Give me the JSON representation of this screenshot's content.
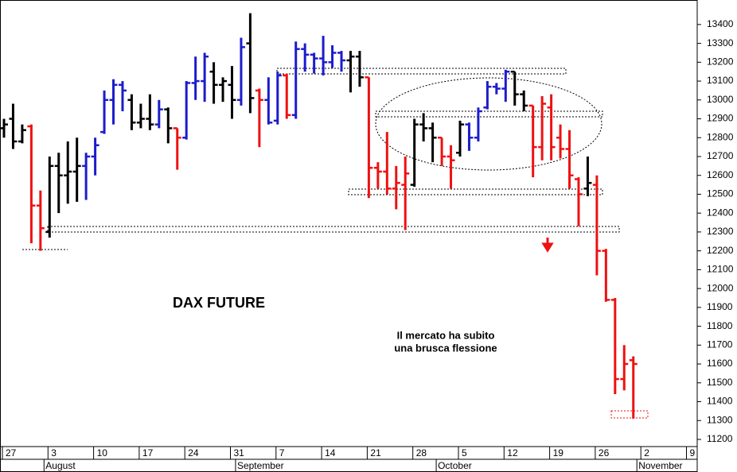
{
  "chart_data": {
    "type": "ohlc",
    "title": "DAX FUTURE",
    "annotation": [
      "Il mercato ha subito",
      "una brusca flessione"
    ],
    "categories": [
      "27",
      null,
      null,
      null,
      null,
      "3",
      null,
      null,
      null,
      null,
      "10",
      null,
      null,
      null,
      null,
      "17",
      null,
      null,
      null,
      null,
      "24",
      null,
      null,
      null,
      null,
      "31",
      null,
      null,
      null,
      null,
      "7",
      null,
      null,
      null,
      null,
      "14",
      null,
      null,
      null,
      null,
      "21",
      null,
      null,
      null,
      null,
      "28",
      null,
      null,
      null,
      null,
      "5",
      null,
      null,
      null,
      null,
      "12",
      null,
      null,
      null,
      null,
      "19",
      null,
      null,
      null,
      null,
      "26",
      null,
      null,
      null,
      null,
      "2",
      null,
      null,
      null,
      null,
      "9",
      null
    ],
    "open": [
      12850,
      12900,
      12780,
      12860,
      12440,
      12300,
      12650,
      12600,
      12620,
      12650,
      12700,
      12830,
      13000,
      13080,
      13000,
      12880,
      12900,
      12870,
      12950,
      12850,
      12800,
      13090,
      13100,
      13150,
      13080,
      13080,
      13000,
      13300,
      13050,
      13000,
      12890,
      13130,
      12920,
      13270,
      13240,
      13220,
      13200,
      13250,
      13210,
      13230,
      13120,
      12640,
      12620,
      12530,
      12550,
      12550,
      12870,
      12850,
      12800,
      12700,
      12720,
      12870,
      12800,
      12960,
      13070,
      13060,
      13150,
      13030,
      12970,
      12750,
      12960,
      12800,
      12740,
      12580,
      12530,
      12550,
      12200,
      11940,
      11520,
      11620,
      null,
      null,
      null,
      null,
      null,
      null,
      null
    ],
    "high": [
      12900,
      12980,
      12870,
      12870,
      12520,
      12700,
      12720,
      12780,
      12800,
      12720,
      12800,
      13050,
      13110,
      13100,
      13030,
      12980,
      13030,
      13000,
      12960,
      12850,
      13100,
      13230,
      13250,
      13200,
      13120,
      13180,
      13330,
      13460,
      13060,
      13120,
      13150,
      13140,
      13310,
      13300,
      13250,
      13340,
      13290,
      13260,
      13260,
      13260,
      13120,
      12670,
      12830,
      12650,
      12700,
      12900,
      12930,
      12880,
      12800,
      12760,
      12890,
      12880,
      12960,
      13100,
      13090,
      13160,
      13150,
      13050,
      12970,
      13020,
      13030,
      12870,
      12840,
      12590,
      12700,
      12600,
      12210,
      11950,
      11700,
      11640,
      null,
      null,
      null,
      null,
      null,
      null,
      null
    ],
    "low": [
      12800,
      12740,
      12770,
      12240,
      12200,
      12270,
      12400,
      12450,
      12460,
      12470,
      12600,
      12820,
      12870,
      12940,
      12840,
      12850,
      12840,
      12850,
      12770,
      12630,
      12790,
      13000,
      12990,
      12980,
      12990,
      12900,
      12970,
      12930,
      12750,
      12870,
      12870,
      12900,
      12900,
      13150,
      13140,
      13130,
      13170,
      13150,
      13040,
      13070,
      12480,
      12530,
      12500,
      12420,
      12310,
      12540,
      12780,
      12670,
      12650,
      12530,
      12700,
      12730,
      12780,
      12950,
      13030,
      12990,
      12970,
      12940,
      12590,
      12680,
      12680,
      12690,
      12530,
      12330,
      12490,
      12070,
      11930,
      11440,
      11460,
      11310,
      null,
      null,
      null,
      null,
      null,
      null,
      null
    ],
    "close": [
      12870,
      12780,
      12840,
      12440,
      12320,
      12650,
      12600,
      12620,
      12650,
      12700,
      12760,
      13000,
      13080,
      13050,
      12880,
      12900,
      12870,
      12950,
      12850,
      12800,
      13090,
      13100,
      13230,
      13080,
      13100,
      13000,
      13280,
      13010,
      13000,
      12880,
      13130,
      12920,
      13270,
      13240,
      13220,
      13200,
      13250,
      13210,
      13230,
      13120,
      12640,
      12620,
      12530,
      12560,
      12610,
      12870,
      12850,
      12800,
      12700,
      12680,
      12870,
      12800,
      12940,
      13070,
      13060,
      13150,
      13030,
      12970,
      12750,
      12980,
      12750,
      12740,
      12600,
      12500,
      12560,
      12200,
      11940,
      11520,
      11600,
      11600,
      null,
      null,
      null,
      null,
      null,
      null,
      null
    ],
    "colors": [
      "#000000",
      "#000000",
      "#000000",
      "#ee1111",
      "#ee1111",
      "#000000",
      "#000000",
      "#000000",
      "#000000",
      "#1c1ccc",
      "#1c1ccc",
      "#1c1ccc",
      "#1c1ccc",
      "#1c1ccc",
      "#000000",
      "#000000",
      "#000000",
      "#1c1ccc",
      "#000000",
      "#ee1111",
      "#1c1ccc",
      "#1c1ccc",
      "#1c1ccc",
      "#000000",
      "#000000",
      "#000000",
      "#1c1ccc",
      "#000000",
      "#ee1111",
      "#1c1ccc",
      "#1c1ccc",
      "#ee1111",
      "#1c1ccc",
      "#1c1ccc",
      "#1c1ccc",
      "#1c1ccc",
      "#1c1ccc",
      "#1c1ccc",
      "#000000",
      "#000000",
      "#ee1111",
      "#ee1111",
      "#ee1111",
      "#ee1111",
      "#ee1111",
      "#000000",
      "#000000",
      "#000000",
      "#ee1111",
      "#ee1111",
      "#000000",
      "#1c1ccc",
      "#1c1ccc",
      "#1c1ccc",
      "#1c1ccc",
      "#1c1ccc",
      "#000000",
      "#000000",
      "#ee1111",
      "#ee1111",
      "#ee1111",
      "#ee1111",
      "#ee1111",
      "#ee1111",
      "#000000",
      "#ee1111",
      "#ee1111",
      "#ee1111",
      "#ee1111",
      "#ee1111",
      null,
      null,
      null,
      null,
      null,
      null,
      null
    ],
    "months": [
      "August",
      "September",
      "October",
      "November"
    ],
    "ylim": [
      11162,
      13530
    ],
    "yticks": [
      11200,
      11300,
      11400,
      11500,
      11600,
      11700,
      11800,
      11900,
      12000,
      12100,
      12200,
      12300,
      12400,
      12500,
      12600,
      12700,
      12800,
      12900,
      13000,
      13100,
      13200,
      13300,
      13400
    ],
    "annotation_color": "#ee1111"
  }
}
